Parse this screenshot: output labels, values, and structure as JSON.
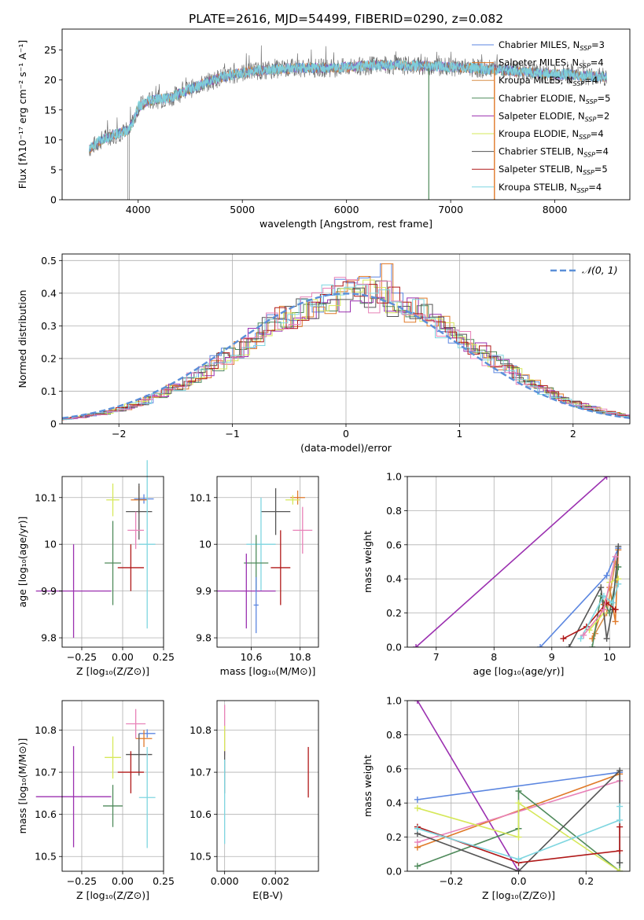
{
  "figure_title": "PLATE=2616, MJD=54499, FIBERID=0290, z=0.082",
  "colors": {
    "Chabrier MILES": "#5b86e0",
    "Salpeter MILES": "#e07a2a",
    "Kroupa MILES": "#d9904a",
    "Chabrier ELODIE": "#4f8a5b",
    "Salpeter ELODIE": "#9b30b0",
    "Kroupa ELODIE": "#d6e85a",
    "Chabrier STELIB": "#555555",
    "Salpeter STELIB": "#b01818",
    "Kroupa STELIB": "#7fd6e0",
    "extra_pink": "#e882b8",
    "gaussian": "#5b8fd8",
    "grid": "#b0b0b0"
  },
  "chart_data": [
    {
      "id": "spectrum",
      "type": "line",
      "title": "PLATE=2616, MJD=54499, FIBERID=0290, z=0.082",
      "xlabel": "wavelength [Angstrom, rest frame]",
      "ylabel": "Flux [fλ10⁻¹⁷ erg cm⁻² s⁻¹ A⁻¹]",
      "xlim": [
        3270,
        8720
      ],
      "ylim": [
        0,
        28.5
      ],
      "xticks": [
        4000,
        5000,
        6000,
        7000,
        8000
      ],
      "yticks": [
        0,
        5,
        10,
        15,
        20,
        25
      ],
      "grid": false,
      "legend_position": "upper-right",
      "legend": [
        {
          "label": "Chabrier MILES, N",
          "sub": "SSP",
          "suffix": "=3",
          "color": "#5b86e0"
        },
        {
          "label": "Salpeter MILES, N",
          "sub": "SSP",
          "suffix": "=4",
          "color": "#e07a2a"
        },
        {
          "label": "Kroupa MILES, N",
          "sub": "SSP",
          "suffix": "=4",
          "color": "#d9904a"
        },
        {
          "label": "Chabrier ELODIE, N",
          "sub": "SSP",
          "suffix": "=5",
          "color": "#4f8a5b"
        },
        {
          "label": "Salpeter ELODIE, N",
          "sub": "SSP",
          "suffix": "=2",
          "color": "#9b30b0"
        },
        {
          "label": "Kroupa ELODIE, N",
          "sub": "SSP",
          "suffix": "=4",
          "color": "#d6e85a"
        },
        {
          "label": "Chabrier STELIB, N",
          "sub": "SSP",
          "suffix": "=4",
          "color": "#555555"
        },
        {
          "label": "Salpeter STELIB, N",
          "sub": "SSP",
          "suffix": "=5",
          "color": "#b01818"
        },
        {
          "label": "Kroupa STELIB, N",
          "sub": "SSP",
          "suffix": "=4",
          "color": "#7fd6e0"
        }
      ],
      "continuum_x": [
        3530,
        3650,
        3800,
        3900,
        3950,
        4000,
        4100,
        4300,
        4500,
        4800,
        5100,
        5500,
        5900,
        6300,
        6800,
        7200,
        7600,
        8000,
        8500
      ],
      "continuum_y": [
        8.5,
        10,
        11,
        11.5,
        13,
        15.5,
        16.5,
        17,
        18.5,
        20.5,
        21.5,
        22,
        22,
        22.5,
        22.3,
        22,
        21.5,
        21,
        20.5
      ]
    },
    {
      "id": "residuals",
      "type": "histogram",
      "xlabel": "(data-model)/error",
      "ylabel": "Normed distribution",
      "xlim": [
        -2.5,
        2.5
      ],
      "ylim": [
        0,
        0.52
      ],
      "xticks": [
        -2,
        -1,
        0,
        1,
        2
      ],
      "yticks": [
        0.0,
        0.1,
        0.2,
        0.3,
        0.4,
        0.5
      ],
      "grid": true,
      "legend_position": "upper-right",
      "legend": [
        {
          "label": "𝒩(0, 1)",
          "color": "#5b8fd8",
          "style": "dashed"
        }
      ],
      "bin_width": 0.1
    },
    {
      "id": "age_vs_Z",
      "type": "errorbar",
      "xlabel": "Z [log₁₀(Z/Z⊙)]",
      "ylabel": "age  [log₁₀(age/yr)]",
      "xlim": [
        -0.37,
        0.25
      ],
      "ylim": [
        9.78,
        10.145
      ],
      "xticks": [
        -0.25,
        0.0,
        0.25
      ],
      "xticklabels": [
        "−0.25",
        "0.00",
        "0.25"
      ],
      "yticks": [
        9.8,
        9.9,
        10.0,
        10.1
      ],
      "grid": true,
      "points": [
        {
          "x": 0.13,
          "y": 10.097,
          "xerr": 0.06,
          "yerr": 0.01,
          "color": "#5b86e0"
        },
        {
          "x": 0.1,
          "y": 10.095,
          "xerr": 0.05,
          "yerr": 0.03,
          "color": "#e07a2a"
        },
        {
          "x": -0.06,
          "y": 10.095,
          "xerr": 0.04,
          "yerr": 0.035,
          "color": "#d6e85a"
        },
        {
          "x": 0.1,
          "y": 10.07,
          "xerr": 0.08,
          "yerr": 0.06,
          "color": "#555555"
        },
        {
          "x": 0.08,
          "y": 10.03,
          "xerr": 0.05,
          "yerr": 0.04,
          "color": "#e882b8"
        },
        {
          "x": 0.15,
          "y": 10.0,
          "xerr": 0.05,
          "yerr": 0.18,
          "color": "#7fd6e0"
        },
        {
          "x": -0.06,
          "y": 9.96,
          "xerr": 0.05,
          "yerr": 0.09,
          "color": "#4f8a5b"
        },
        {
          "x": 0.05,
          "y": 9.95,
          "xerr": 0.08,
          "yerr": 0.05,
          "color": "#b01818"
        },
        {
          "x": -0.3,
          "y": 9.9,
          "xerr": 0.23,
          "yerr": 0.1,
          "color": "#9b30b0"
        }
      ]
    },
    {
      "id": "age_vs_mass",
      "type": "errorbar",
      "xlabel": "mass [log₁₀(M/M⊙)]",
      "ylabel": "",
      "xlim": [
        10.46,
        10.875
      ],
      "ylim": [
        9.78,
        10.145
      ],
      "xticks": [
        10.6,
        10.8
      ],
      "yticks": [
        9.8,
        9.9,
        10.0,
        10.1
      ],
      "grid": true,
      "points": [
        {
          "x": 10.79,
          "y": 10.1,
          "xerr": 0.03,
          "yerr": 0.015,
          "color": "#e07a2a"
        },
        {
          "x": 10.77,
          "y": 10.095,
          "xerr": 0.03,
          "yerr": 0.01,
          "color": "#d6e85a"
        },
        {
          "x": 10.7,
          "y": 10.07,
          "xerr": 0.06,
          "yerr": 0.05,
          "color": "#555555"
        },
        {
          "x": 10.81,
          "y": 10.03,
          "xerr": 0.04,
          "yerr": 0.05,
          "color": "#e882b8"
        },
        {
          "x": 10.64,
          "y": 10.0,
          "xerr": 0.06,
          "yerr": 0.1,
          "color": "#7fd6e0"
        },
        {
          "x": 10.62,
          "y": 9.96,
          "xerr": 0.05,
          "yerr": 0.06,
          "color": "#4f8a5b"
        },
        {
          "x": 10.72,
          "y": 9.95,
          "xerr": 0.04,
          "yerr": 0.08,
          "color": "#b01818"
        },
        {
          "x": 10.58,
          "y": 9.9,
          "xerr": 0.12,
          "yerr": 0.08,
          "color": "#9b30b0"
        },
        {
          "x": 10.62,
          "y": 9.87,
          "xerr": 0.01,
          "yerr": 0.06,
          "color": "#5b86e0"
        }
      ]
    },
    {
      "id": "weight_vs_age",
      "type": "line",
      "xlabel": "age  [log₁₀(age/yr)]",
      "ylabel": "mass weight",
      "xlim": [
        6.5,
        10.35
      ],
      "ylim": [
        0,
        1.0
      ],
      "xticks": [
        7,
        8,
        9,
        10
      ],
      "yticks": [
        0.0,
        0.2,
        0.4,
        0.6,
        0.8,
        1.0
      ],
      "yticklabels": [
        "0.0",
        "0.2",
        "0.4",
        "0.6",
        "0.8",
        "1.0"
      ],
      "grid": true,
      "series": [
        {
          "color": "#9b30b0",
          "x": [
            6.65,
            9.95
          ],
          "y": [
            0.0,
            1.0
          ]
        },
        {
          "color": "#5b86e0",
          "x": [
            8.8,
            9.95,
            10.15
          ],
          "y": [
            0.0,
            0.42,
            0.58
          ]
        },
        {
          "color": "#e07a2a",
          "x": [
            9.7,
            9.9,
            10.0,
            10.1,
            10.15
          ],
          "y": [
            0.05,
            0.25,
            0.35,
            0.15,
            0.57
          ]
        },
        {
          "color": "#d9904a",
          "x": [
            9.75,
            9.95,
            10.1
          ],
          "y": [
            0.08,
            0.2,
            0.5
          ]
        },
        {
          "color": "#4f8a5b",
          "x": [
            9.7,
            9.85,
            10.0,
            10.15
          ],
          "y": [
            0.0,
            0.3,
            0.2,
            0.47
          ]
        },
        {
          "color": "#d6e85a",
          "x": [
            9.65,
            9.9,
            10.0,
            10.15
          ],
          "y": [
            0.1,
            0.2,
            0.38,
            0.4
          ]
        },
        {
          "color": "#555555",
          "x": [
            9.3,
            9.85,
            9.95,
            10.05,
            10.15
          ],
          "y": [
            0.0,
            0.35,
            0.05,
            0.22,
            0.59
          ]
        },
        {
          "color": "#b01818",
          "x": [
            9.2,
            9.6,
            9.95,
            10.1
          ],
          "y": [
            0.05,
            0.12,
            0.26,
            0.22
          ]
        },
        {
          "color": "#7fd6e0",
          "x": [
            9.5,
            9.9,
            10.05,
            10.15
          ],
          "y": [
            0.05,
            0.3,
            0.26,
            0.37
          ]
        },
        {
          "color": "#e882b8",
          "x": [
            9.55,
            9.9,
            10.1
          ],
          "y": [
            0.07,
            0.22,
            0.53
          ]
        }
      ]
    },
    {
      "id": "mass_vs_Z",
      "type": "errorbar",
      "xlabel": "Z [log₁₀(Z/Z⊙)]",
      "ylabel": "mass [log₁₀(M/M⊙)]",
      "xlim": [
        -0.37,
        0.25
      ],
      "ylim": [
        10.465,
        10.87
      ],
      "xticks": [
        -0.25,
        0.0,
        0.25
      ],
      "xticklabels": [
        "−0.25",
        "0.00",
        "0.25"
      ],
      "yticks": [
        10.5,
        10.6,
        10.7,
        10.8
      ],
      "grid": true,
      "points": [
        {
          "x": 0.08,
          "y": 10.815,
          "xerr": 0.06,
          "yerr": 0.035,
          "color": "#e882b8"
        },
        {
          "x": 0.15,
          "y": 10.792,
          "xerr": 0.05,
          "yerr": 0.01,
          "color": "#5b86e0"
        },
        {
          "x": 0.13,
          "y": 10.78,
          "xerr": 0.05,
          "yerr": 0.02,
          "color": "#e07a2a"
        },
        {
          "x": 0.1,
          "y": 10.742,
          "xerr": 0.08,
          "yerr": 0.05,
          "color": "#555555"
        },
        {
          "x": -0.06,
          "y": 10.735,
          "xerr": 0.05,
          "yerr": 0.05,
          "color": "#d6e85a"
        },
        {
          "x": 0.05,
          "y": 10.7,
          "xerr": 0.08,
          "yerr": 0.05,
          "color": "#b01818"
        },
        {
          "x": -0.3,
          "y": 10.642,
          "xerr": 0.23,
          "yerr": 0.12,
          "color": "#9b30b0"
        },
        {
          "x": 0.15,
          "y": 10.64,
          "xerr": 0.05,
          "yerr": 0.12,
          "color": "#7fd6e0"
        },
        {
          "x": -0.06,
          "y": 10.62,
          "xerr": 0.06,
          "yerr": 0.05,
          "color": "#4f8a5b"
        }
      ]
    },
    {
      "id": "mass_vs_ebv",
      "type": "errorbar",
      "xlabel": "E(B-V)",
      "ylabel": "",
      "xlim": [
        -0.0003,
        0.0037
      ],
      "ylim": [
        10.465,
        10.87
      ],
      "xticks": [
        0.0,
        0.002
      ],
      "xticklabels": [
        "0.000",
        "0.002"
      ],
      "yticks": [
        10.5,
        10.6,
        10.7,
        10.8
      ],
      "grid": true,
      "points": [
        {
          "x": 0.0,
          "y": 10.8,
          "xerr": 0,
          "yerr": 0.06,
          "color": "#e882b8"
        },
        {
          "x": 0.0,
          "y": 10.78,
          "xerr": 0,
          "yerr": 0.03,
          "color": "#d6e85a"
        },
        {
          "x": 0.0,
          "y": 10.7,
          "xerr": 0,
          "yerr": 0.05,
          "color": "#555555"
        },
        {
          "x": 0.0,
          "y": 10.63,
          "xerr": 0,
          "yerr": 0.1,
          "color": "#7fd6e0"
        },
        {
          "x": 0.0033,
          "y": 10.7,
          "xerr": 0,
          "yerr": 0.06,
          "color": "#b01818"
        }
      ]
    },
    {
      "id": "weight_vs_Z",
      "type": "line",
      "xlabel": "Z [log₁₀(Z/Z⊙)]",
      "ylabel": "mass weight",
      "xlim": [
        -0.33,
        0.33
      ],
      "ylim": [
        0,
        1.0
      ],
      "xticks": [
        -0.2,
        0.0,
        0.2
      ],
      "xticklabels": [
        "−0.2",
        "0.0",
        "0.2"
      ],
      "yticks": [
        0.0,
        0.2,
        0.4,
        0.6,
        0.8,
        1.0
      ],
      "yticklabels": [
        "0.0",
        "0.2",
        "0.4",
        "0.6",
        "0.8",
        "1.0"
      ],
      "grid": true,
      "series": [
        {
          "color": "#9b30b0",
          "x": [
            -0.3,
            0.0
          ],
          "y": [
            1.0,
            0.0
          ]
        },
        {
          "color": "#5b86e0",
          "x": [
            -0.3,
            0.3
          ],
          "y": [
            0.42,
            0.58
          ]
        },
        {
          "color": "#e07a2a",
          "x": [
            -0.3,
            0.3
          ],
          "y": [
            0.14,
            0.57
          ]
        },
        {
          "color": "#e882b8",
          "x": [
            -0.3,
            0.3
          ],
          "y": [
            0.17,
            0.53
          ]
        },
        {
          "color": "#4f8a5b",
          "x": [
            -0.3,
            0.0,
            0.0,
            0.3,
            0.3
          ],
          "y": [
            0.03,
            0.25,
            0.47,
            0.0,
            0.05
          ]
        },
        {
          "color": "#d6e85a",
          "x": [
            -0.3,
            0.0,
            0.0,
            0.3
          ],
          "y": [
            0.37,
            0.2,
            0.4,
            0.0
          ]
        },
        {
          "color": "#555555",
          "x": [
            -0.3,
            0.0,
            0.3,
            0.3
          ],
          "y": [
            0.22,
            0.0,
            0.59,
            0.05
          ]
        },
        {
          "color": "#b01818",
          "x": [
            -0.3,
            0.0,
            0.3,
            0.3
          ],
          "y": [
            0.26,
            0.05,
            0.12,
            0.26
          ]
        },
        {
          "color": "#7fd6e0",
          "x": [
            -0.3,
            0.0,
            0.3,
            0.3
          ],
          "y": [
            0.25,
            0.07,
            0.3,
            0.38
          ]
        }
      ]
    }
  ]
}
